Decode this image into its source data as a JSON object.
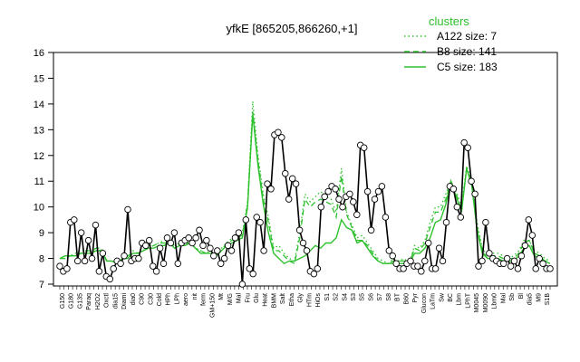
{
  "chart_data": {
    "type": "line",
    "title": "yfkE [865205,866260,+1]",
    "xlabel": "",
    "ylabel": "",
    "ylim": [
      7,
      16
    ],
    "yticks": [
      7,
      8,
      9,
      10,
      11,
      12,
      13,
      14,
      15,
      16
    ],
    "x_tick_labels_visible": [
      "G150",
      "G180",
      "G135",
      "Paraq",
      "H2O2",
      "Oxctl",
      "dia15",
      "Diami",
      "dia0",
      "C90",
      "C30",
      "Cold",
      "HPh",
      "LPh",
      "aero",
      "nit",
      "ferm",
      "GM+150",
      "Mt",
      "M/G",
      "Mal",
      "Fru",
      "Glu",
      "Heat",
      "BMM",
      "Salt",
      "Etha",
      "Gly",
      "HTm",
      "HiOs",
      "S1",
      "S2",
      "S4",
      "S3",
      "S5",
      "S6",
      "S7",
      "S8",
      "BT",
      "B60",
      "Pyr",
      "Glucon",
      "LaTm",
      "Sw",
      "BC",
      "Lbm",
      "LPhT",
      "M0045",
      "M0090",
      "Lbm0",
      "Mal",
      "Sb",
      "Bl",
      "dia5",
      "M9",
      "S1B"
    ],
    "legend": {
      "title": "clusters",
      "position": "top-right",
      "entries": [
        {
          "label": "A122 size: 7",
          "style": "dotted"
        },
        {
          "label": "B8 size: 141",
          "style": "dashed"
        },
        {
          "label": "C5 size: 183",
          "style": "solid"
        }
      ]
    },
    "series_colors": {
      "line": "#2ec12e",
      "points": "#000000"
    },
    "series": [
      {
        "name": "A122 size: 7",
        "style": "dotted",
        "values": [
          8.0,
          8.0,
          8.1,
          8.2,
          8.3,
          8.3,
          8.2,
          8.4,
          8.3,
          7.9,
          7.9,
          7.8,
          8.0,
          8.1,
          8.3,
          8.2,
          8.3,
          8.5,
          8.5,
          8.6,
          8.7,
          8.7,
          8.5,
          8.6,
          8.6,
          8.6,
          8.4,
          8.3,
          8.2,
          8.3,
          8.1,
          8.4,
          8.6,
          8.8,
          8.9,
          9.0,
          10.2,
          14.1,
          12.0,
          10.5,
          9.6,
          8.4,
          8.5,
          8.2,
          8.0,
          7.9,
          9.0,
          10.5,
          10.2,
          10.4,
          10.6,
          10.4,
          10.3,
          9.8,
          11.5,
          9.8,
          9.3,
          8.8,
          8.9,
          8.6,
          8.3,
          8.0,
          7.9,
          7.8,
          8.0,
          7.9,
          8.0,
          7.8,
          8.5,
          8.4,
          8.7,
          9.4,
          10.0,
          10.0,
          10.5,
          11.0,
          10.6,
          10.0,
          11.6,
          11.0,
          9.4,
          8.4,
          8.1,
          8.2,
          8.2,
          8.1,
          8.0,
          8.1,
          8.3,
          8.7,
          8.7,
          8.3,
          8.2,
          8.0,
          7.9
        ]
      },
      {
        "name": "B8 size: 141",
        "style": "dashed",
        "values": [
          8.0,
          8.0,
          8.1,
          8.1,
          8.2,
          8.3,
          8.3,
          8.4,
          8.4,
          7.9,
          7.9,
          7.8,
          8.0,
          8.1,
          8.2,
          8.2,
          8.3,
          8.4,
          8.5,
          8.6,
          8.6,
          8.6,
          8.5,
          8.6,
          8.6,
          8.6,
          8.4,
          8.3,
          8.2,
          8.2,
          8.1,
          8.3,
          8.6,
          8.7,
          8.8,
          8.9,
          10.1,
          13.7,
          11.8,
          10.3,
          9.4,
          8.3,
          8.3,
          8.1,
          7.9,
          7.8,
          8.8,
          10.3,
          10.0,
          10.2,
          10.3,
          10.2,
          10.1,
          9.6,
          11.2,
          9.7,
          9.2,
          8.7,
          8.7,
          8.5,
          8.2,
          7.9,
          7.8,
          7.8,
          7.9,
          7.9,
          7.9,
          7.8,
          8.4,
          8.3,
          8.6,
          9.2,
          9.8,
          9.8,
          10.3,
          11.0,
          10.5,
          9.9,
          11.5,
          10.9,
          9.2,
          8.3,
          8.0,
          8.1,
          8.1,
          8.0,
          8.0,
          8.0,
          8.2,
          8.6,
          8.7,
          8.2,
          8.1,
          7.9,
          7.9
        ]
      },
      {
        "name": "C5 size: 183",
        "style": "solid",
        "values": [
          8.0,
          8.1,
          8.1,
          8.1,
          8.2,
          8.2,
          8.2,
          8.3,
          8.3,
          7.9,
          7.9,
          7.8,
          8.0,
          8.0,
          8.2,
          8.2,
          8.3,
          8.4,
          8.4,
          8.5,
          8.5,
          8.6,
          8.4,
          8.5,
          8.5,
          8.6,
          8.4,
          8.2,
          8.2,
          8.2,
          8.1,
          8.3,
          8.5,
          8.6,
          8.7,
          8.8,
          10.0,
          13.6,
          11.6,
          10.1,
          9.0,
          8.2,
          8.0,
          7.8,
          7.9,
          7.9,
          8.0,
          8.1,
          8.3,
          8.5,
          8.4,
          8.6,
          8.6,
          8.8,
          9.5,
          9.2,
          9.1,
          8.6,
          8.7,
          8.4,
          8.1,
          7.9,
          7.8,
          7.8,
          7.8,
          7.8,
          7.8,
          7.8,
          8.2,
          8.2,
          8.4,
          8.8,
          9.4,
          9.5,
          10.1,
          11.0,
          10.4,
          9.8,
          11.5,
          10.8,
          9.1,
          8.2,
          8.0,
          8.0,
          8.0,
          7.9,
          7.9,
          7.9,
          8.1,
          8.4,
          8.5,
          8.1,
          8.0,
          7.9,
          7.8
        ]
      }
    ],
    "points": [
      7.7,
      7.5,
      7.6,
      9.4,
      9.5,
      7.9,
      9.0,
      7.9,
      8.7,
      8.0,
      9.3,
      7.5,
      8.2,
      7.3,
      7.2,
      7.6,
      7.9,
      7.8,
      8.1,
      9.9,
      7.9,
      8.0,
      8.0,
      8.6,
      8.5,
      8.7,
      7.7,
      7.5,
      8.4,
      7.8,
      8.8,
      8.6,
      9.0,
      7.8,
      8.6,
      8.7,
      8.8,
      8.6,
      8.8,
      9.1,
      8.5,
      8.7,
      8.4,
      8.1,
      8.3,
      7.8,
      8.0,
      8.5,
      8.3,
      8.8,
      9.0,
      7.0,
      9.5,
      7.6,
      7.4,
      9.6,
      9.4,
      8.3,
      10.9,
      10.7,
      12.8,
      12.9,
      12.7,
      11.3,
      10.3,
      11.1,
      10.9,
      9.1,
      8.6,
      8.3,
      7.5,
      7.4,
      7.6,
      10.0,
      10.4,
      10.6,
      10.8,
      10.7,
      10.3,
      10.0,
      10.4,
      10.5,
      10.2,
      9.7,
      12.4,
      12.3,
      10.6,
      9.1,
      10.3,
      10.6,
      10.8,
      9.6,
      8.3,
      8.1,
      7.8,
      7.6,
      7.6,
      7.8,
      7.9,
      7.7,
      7.7,
      7.5,
      7.9,
      8.6,
      7.6,
      7.6,
      8.4,
      7.9,
      9.4,
      10.8,
      10.7,
      10.0,
      9.6,
      12.5,
      12.3,
      11.0,
      10.5,
      7.7,
      7.9,
      9.4,
      8.2,
      8.0,
      7.9,
      7.8,
      7.8,
      8.0,
      7.7,
      7.9,
      7.6,
      8.1,
      8.5,
      9.5,
      8.9,
      7.6,
      8.0,
      7.8,
      7.6,
      7.6
    ]
  }
}
